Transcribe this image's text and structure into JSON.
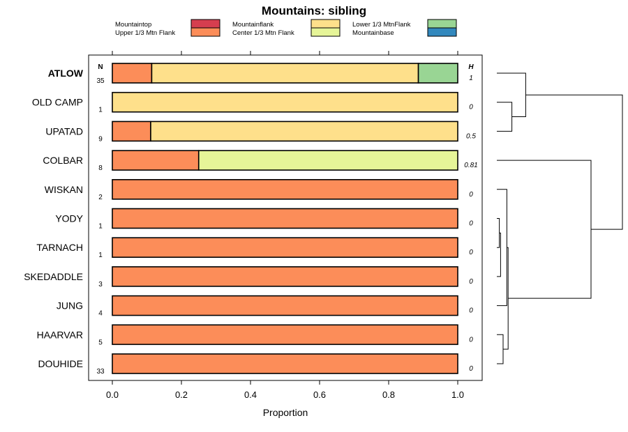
{
  "chart_data": {
    "type": "bar",
    "orientation": "horizontal",
    "stacked": true,
    "title": "Mountains: sibling",
    "xlabel": "Proportion",
    "xlim": [
      0,
      1
    ],
    "xticks": [
      "0.0",
      "0.2",
      "0.4",
      "0.6",
      "0.8",
      "1.0"
    ],
    "n_header": "N",
    "h_header": "H",
    "legend": [
      {
        "name": "Mountaintop",
        "color": "#d53e4f"
      },
      {
        "name": "Upper 1/3 Mtn Flank",
        "color": "#fc8d59"
      },
      {
        "name": "Mountainflank",
        "color": "#fee08b"
      },
      {
        "name": "Center 1/3 Mtn Flank",
        "color": "#e6f598"
      },
      {
        "name": "Lower 1/3 MtnFlank",
        "color": "#99d594"
      },
      {
        "name": "Mountainbase",
        "color": "#3288bd"
      }
    ],
    "categories": [
      {
        "label": "ATLOW",
        "bold": true,
        "n": "35",
        "h": "1",
        "segments": [
          {
            "series": "Upper 1/3 Mtn Flank",
            "value": 0.114
          },
          {
            "series": "Mountainflank",
            "value": 0.772
          },
          {
            "series": "Lower 1/3 MtnFlank",
            "value": 0.114
          }
        ]
      },
      {
        "label": "OLD CAMP",
        "bold": false,
        "n": "1",
        "h": "0",
        "segments": [
          {
            "series": "Mountainflank",
            "value": 1.0
          }
        ]
      },
      {
        "label": "UPATAD",
        "bold": false,
        "n": "9",
        "h": "0.5",
        "segments": [
          {
            "series": "Upper 1/3 Mtn Flank",
            "value": 0.111
          },
          {
            "series": "Mountainflank",
            "value": 0.889
          }
        ]
      },
      {
        "label": "COLBAR",
        "bold": false,
        "n": "8",
        "h": "0.81",
        "segments": [
          {
            "series": "Upper 1/3 Mtn Flank",
            "value": 0.25
          },
          {
            "series": "Center 1/3 Mtn Flank",
            "value": 0.75
          }
        ]
      },
      {
        "label": "WISKAN",
        "bold": false,
        "n": "2",
        "h": "0",
        "segments": [
          {
            "series": "Upper 1/3 Mtn Flank",
            "value": 1.0
          }
        ]
      },
      {
        "label": "YODY",
        "bold": false,
        "n": "1",
        "h": "0",
        "segments": [
          {
            "series": "Upper 1/3 Mtn Flank",
            "value": 1.0
          }
        ]
      },
      {
        "label": "TARNACH",
        "bold": false,
        "n": "1",
        "h": "0",
        "segments": [
          {
            "series": "Upper 1/3 Mtn Flank",
            "value": 1.0
          }
        ]
      },
      {
        "label": "SKEDADDLE",
        "bold": false,
        "n": "3",
        "h": "0",
        "segments": [
          {
            "series": "Upper 1/3 Mtn Flank",
            "value": 1.0
          }
        ]
      },
      {
        "label": "JUNG",
        "bold": false,
        "n": "4",
        "h": "0",
        "segments": [
          {
            "series": "Upper 1/3 Mtn Flank",
            "value": 1.0
          }
        ]
      },
      {
        "label": "HAARVAR",
        "bold": false,
        "n": "5",
        "h": "0",
        "segments": [
          {
            "series": "Upper 1/3 Mtn Flank",
            "value": 1.0
          }
        ]
      },
      {
        "label": "DOUHIDE",
        "bold": false,
        "n": "33",
        "h": "0",
        "segments": [
          {
            "series": "Upper 1/3 Mtn Flank",
            "value": 1.0
          }
        ]
      }
    ],
    "dendrogram": {
      "leaf_order": [
        "ATLOW",
        "OLD CAMP",
        "UPATAD",
        "COLBAR",
        "WISKAN",
        "YODY",
        "TARNACH",
        "SKEDADDLE",
        "JUNG",
        "HAARVAR",
        "DOUHIDE"
      ],
      "merges": [
        {
          "left": "OLD CAMP",
          "right": "UPATAD",
          "height": 0.12
        },
        {
          "left": "ATLOW",
          "right": "OLD CAMP+UPATAD",
          "height": 0.23
        },
        {
          "left": "YODY",
          "right": "TARNACH",
          "height": 0.02
        },
        {
          "left": "HAARVAR",
          "right": "DOUHIDE",
          "height": 0.05
        },
        {
          "left": "YODY+TARNACH",
          "right": "SKEDADDLE",
          "height": 0.03
        },
        {
          "left": "WISKAN",
          "right": "JUNG",
          "height": 0.08
        },
        {
          "left": "WISKAN..JUNG",
          "right": "HAARVAR+DOUHIDE",
          "height": 0.09
        },
        {
          "left": "COLBAR",
          "right": "WISKAN..DOUHIDE",
          "height": 0.75
        },
        {
          "left": "ATLOW..UPATAD",
          "right": "COLBAR..DOUHIDE",
          "height": 1.0
        }
      ]
    }
  }
}
